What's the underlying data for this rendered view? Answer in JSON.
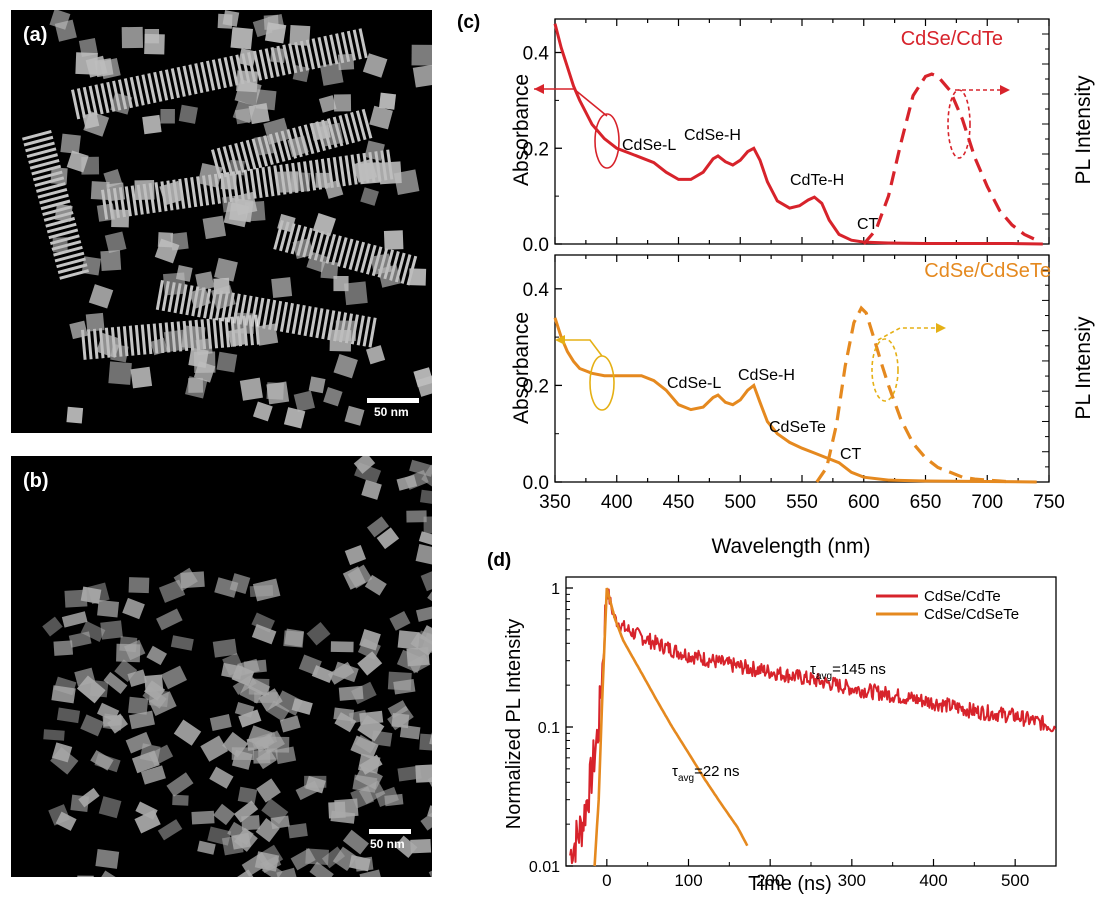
{
  "panels": {
    "a": {
      "letter": "(a)",
      "scale_label": "50 nm"
    },
    "b": {
      "letter": "(b)",
      "scale_label": "50 nm"
    },
    "c": {
      "letter": "(c)"
    },
    "d": {
      "letter": "(d)"
    }
  },
  "colors": {
    "red": "#d7232b",
    "orange": "#e5891f"
  },
  "chart_data": [
    {
      "type": "line",
      "panel": "(c) top",
      "title": "CdSe/CdTe",
      "ylabel": "Absorbance",
      "y2label": "PL Intensity",
      "xlim": [
        350,
        750
      ],
      "ylim": [
        0,
        0.47
      ],
      "yticks": [
        "0.0",
        "0.2",
        "0.4"
      ],
      "grid": false,
      "series": [
        {
          "style": "solid",
          "axis": "left",
          "x": [
            350,
            355,
            360,
            365,
            370,
            380,
            390,
            400,
            410,
            420,
            430,
            440,
            450,
            460,
            470,
            478,
            482,
            488,
            494,
            500,
            506,
            511,
            516,
            522,
            530,
            540,
            548,
            555,
            560,
            566,
            572,
            580,
            590,
            600,
            620,
            650,
            680,
            720,
            745
          ],
          "y": [
            0.46,
            0.41,
            0.37,
            0.33,
            0.3,
            0.25,
            0.22,
            0.2,
            0.19,
            0.18,
            0.17,
            0.15,
            0.135,
            0.135,
            0.15,
            0.178,
            0.184,
            0.172,
            0.165,
            0.175,
            0.193,
            0.2,
            0.175,
            0.13,
            0.09,
            0.075,
            0.08,
            0.092,
            0.098,
            0.085,
            0.05,
            0.02,
            0.008,
            0.004,
            0.002,
            0.001,
            0.001,
            0.001,
            0.0
          ]
        },
        {
          "style": "dashed",
          "axis": "right",
          "x": [
            600,
            610,
            620,
            630,
            640,
            650,
            655,
            660,
            670,
            680,
            690,
            700,
            710,
            720,
            730,
            740
          ],
          "y": [
            0.0,
            0.03,
            0.1,
            0.21,
            0.31,
            0.35,
            0.355,
            0.35,
            0.32,
            0.26,
            0.18,
            0.12,
            0.07,
            0.04,
            0.02,
            0.008
          ]
        }
      ],
      "annotations": [
        "CdSe-L",
        "CdSe-H",
        "CdTe-H",
        "CT"
      ]
    },
    {
      "type": "line",
      "panel": "(c) bottom",
      "title": "CdSe/CdSeTe",
      "xlabel": "Wavelength (nm)",
      "ylabel": "Absorbance",
      "y2label": "PL Intensiy",
      "xlim": [
        350,
        750
      ],
      "xticks": [
        "350",
        "400",
        "450",
        "500",
        "550",
        "600",
        "650",
        "700",
        "750"
      ],
      "ylim": [
        0,
        0.47
      ],
      "yticks": [
        "0.0",
        "0.2",
        "0.4"
      ],
      "grid": false,
      "series": [
        {
          "style": "solid",
          "axis": "left",
          "x": [
            350,
            355,
            360,
            365,
            370,
            380,
            390,
            400,
            410,
            420,
            430,
            440,
            450,
            460,
            470,
            478,
            482,
            488,
            494,
            500,
            506,
            511,
            516,
            522,
            530,
            540,
            550,
            560,
            570,
            580,
            590,
            600,
            620,
            650,
            700,
            740
          ],
          "y": [
            0.34,
            0.3,
            0.27,
            0.25,
            0.235,
            0.225,
            0.22,
            0.22,
            0.22,
            0.22,
            0.21,
            0.19,
            0.16,
            0.15,
            0.155,
            0.175,
            0.18,
            0.165,
            0.16,
            0.17,
            0.19,
            0.2,
            0.165,
            0.125,
            0.1,
            0.082,
            0.07,
            0.06,
            0.05,
            0.04,
            0.02,
            0.01,
            0.004,
            0.002,
            0.001,
            0.0
          ]
        },
        {
          "style": "dashed",
          "axis": "right",
          "x": [
            562,
            570,
            578,
            585,
            592,
            598,
            602,
            608,
            615,
            620,
            630,
            640,
            650,
            660,
            670,
            680,
            690,
            700,
            710,
            720
          ],
          "y": [
            0.0,
            0.03,
            0.12,
            0.24,
            0.33,
            0.36,
            0.35,
            0.3,
            0.24,
            0.2,
            0.13,
            0.08,
            0.05,
            0.03,
            0.02,
            0.01,
            0.006,
            0.004,
            0.002,
            0.0
          ]
        }
      ],
      "annotations": [
        "CdSe-L",
        "CdSe-H",
        "CdSeTe",
        "CT"
      ]
    },
    {
      "type": "line",
      "panel": "(d)",
      "xlabel": "Time (ns)",
      "ylabel": "Normalized PL Intensity",
      "xlim": [
        -50,
        550
      ],
      "xticks": [
        "0",
        "100",
        "200",
        "300",
        "400",
        "500"
      ],
      "ylim": [
        0.01,
        1.2
      ],
      "yscale": "log",
      "yticks": [
        "0.01",
        "0.1",
        "1"
      ],
      "grid": false,
      "legend": "top-right",
      "series": [
        {
          "name": "CdSe/CdTe",
          "x": [
            -45,
            -30,
            -20,
            -10,
            -5,
            0,
            5,
            10,
            20,
            40,
            60,
            80,
            100,
            150,
            200,
            250,
            300,
            350,
            400,
            450,
            500,
            550
          ],
          "y": [
            0.012,
            0.02,
            0.04,
            0.1,
            0.3,
            1.0,
            0.75,
            0.6,
            0.52,
            0.45,
            0.4,
            0.36,
            0.33,
            0.28,
            0.25,
            0.22,
            0.19,
            0.17,
            0.15,
            0.13,
            0.12,
            0.1
          ]
        },
        {
          "name": "CdSe/CdSeTe",
          "x": [
            -15,
            -10,
            -5,
            0,
            10,
            20,
            30,
            40,
            60,
            80,
            100,
            120,
            140,
            160,
            172
          ],
          "y": [
            0.01,
            0.03,
            0.2,
            1.0,
            0.6,
            0.42,
            0.33,
            0.26,
            0.16,
            0.1,
            0.065,
            0.042,
            0.028,
            0.019,
            0.014
          ]
        }
      ],
      "annotations": [
        "τavg=145 ns",
        "τavg=22 ns"
      ]
    }
  ],
  "labels": {
    "c_top_ann": {
      "cdse_l": "CdSe-L",
      "cdse_h": "CdSe-H",
      "cdte_h": "CdTe-H",
      "ct": "CT"
    },
    "c_bot_ann": {
      "cdse_l": "CdSe-L",
      "cdse_h": "CdSe-H",
      "cdsete": "CdSeTe",
      "ct": "CT"
    },
    "d_ann": {
      "tau": "τ",
      "avg": "avg",
      "v1": "=145 ns",
      "v2": "=22 ns"
    }
  }
}
